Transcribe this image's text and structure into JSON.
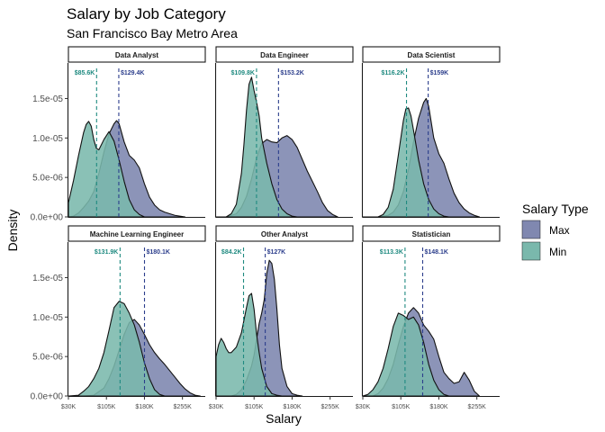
{
  "title": "Salary by Job Category",
  "subtitle": "San Francisco Bay Metro Area",
  "colors": {
    "max": "#8088b0",
    "min": "#7ab8ac",
    "max_line": "#2c3e8c",
    "min_line": "#1f8a80"
  },
  "chart_data": {
    "type": "area",
    "xlabel": "Salary",
    "ylabel": "Density",
    "xlim": [
      30000,
      300000
    ],
    "ylim": [
      0,
      1.95e-05
    ],
    "x_ticks": [
      30000,
      105000,
      180000,
      255000
    ],
    "x_tick_labels": [
      "$30K",
      "$105K",
      "$180K",
      "$255K"
    ],
    "y_ticks": [
      0,
      5e-06,
      1e-05,
      1.5e-05
    ],
    "y_tick_labels": [
      "0.0e+00",
      "5.0e-06",
      "1.0e-05",
      "1.5e-05"
    ],
    "legend": {
      "title": "Salary Type",
      "position": "right",
      "entries": [
        "Max",
        "Min"
      ]
    },
    "facets": [
      {
        "label": "Data Analyst",
        "min_mean": 85600,
        "min_label": "$85.6K",
        "max_mean": 129400,
        "max_label": "$129.4K",
        "series": [
          {
            "name": "Max",
            "x": [
              30000,
              40000,
              50000,
              60000,
              70000,
              80000,
              90000,
              100000,
              110000,
              120000,
              125000,
              130000,
              140000,
              150000,
              160000,
              170000,
              180000,
              190000,
              200000,
              210000,
              220000,
              230000,
              240000,
              250000,
              260000
            ],
            "y": [
              0,
              1e-07,
              5e-07,
              1.2e-06,
              2e-06,
              3.2e-06,
              5.5e-06,
              8.2e-06,
              1.05e-05,
              1.18e-05,
              1.22e-05,
              1.18e-05,
              9.5e-06,
              7.8e-06,
              7.2e-06,
              6.2e-06,
              4.2e-06,
              2.5e-06,
              1.5e-06,
              9e-07,
              6e-07,
              4e-07,
              2e-07,
              1e-07,
              0
            ]
          },
          {
            "name": "Min",
            "x": [
              30000,
              40000,
              50000,
              60000,
              65000,
              70000,
              75000,
              80000,
              85000,
              90000,
              100000,
              110000,
              120000,
              130000,
              140000,
              150000,
              160000,
              170000,
              180000
            ],
            "y": [
              1.8e-06,
              4.6e-06,
              7.8e-06,
              1.07e-05,
              1.17e-05,
              1.21e-05,
              1.15e-05,
              9.8e-06,
              8.7e-06,
              8.5e-06,
              9.8e-06,
              1.08e-05,
              9.6e-06,
              7.2e-06,
              4.5e-06,
              2.2e-06,
              9e-07,
              3e-07,
              0
            ]
          }
        ]
      },
      {
        "label": "Data Engineer",
        "min_mean": 109800,
        "min_label": "$109.8K",
        "max_mean": 153200,
        "max_label": "$153.2K",
        "series": [
          {
            "name": "Max",
            "x": [
              30000,
              50000,
              70000,
              80000,
              90000,
              100000,
              110000,
              120000,
              130000,
              140000,
              150000,
              160000,
              170000,
              180000,
              190000,
              200000,
              210000,
              220000,
              230000,
              240000,
              250000,
              260000,
              270000
            ],
            "y": [
              0,
              0,
              4e-07,
              1.2e-06,
              2.6e-06,
              4.8e-06,
              7.5e-06,
              9.3e-06,
              9.8e-06,
              9.5e-06,
              9.4e-06,
              1e-05,
              1.03e-05,
              9.8e-06,
              8.8e-06,
              7.3e-06,
              5.8e-06,
              4.5e-06,
              3.2e-06,
              1.8e-06,
              8e-07,
              3e-07,
              0
            ]
          },
          {
            "name": "Min",
            "x": [
              30000,
              50000,
              60000,
              70000,
              80000,
              85000,
              90000,
              95000,
              100000,
              105000,
              110000,
              115000,
              120000,
              130000,
              140000,
              150000,
              160000,
              170000,
              180000,
              190000
            ],
            "y": [
              0,
              0,
              4e-07,
              1.6e-06,
              5.5e-06,
              9.2e-06,
              1.35e-05,
              1.68e-05,
              1.77e-05,
              1.6e-05,
              1.45e-05,
              1.28e-05,
              1e-05,
              6.8e-06,
              4.2e-06,
              2.2e-06,
              1e-06,
              4e-07,
              1e-07,
              0
            ]
          }
        ]
      },
      {
        "label": "Data Scientist",
        "min_mean": 116200,
        "min_label": "$116.2K",
        "max_mean": 159000,
        "max_label": "$159K",
        "series": [
          {
            "name": "Max",
            "x": [
              30000,
              60000,
              80000,
              90000,
              100000,
              110000,
              120000,
              130000,
              140000,
              150000,
              155000,
              160000,
              170000,
              180000,
              190000,
              200000,
              210000,
              220000,
              230000,
              240000,
              250000,
              260000
            ],
            "y": [
              0,
              0,
              2e-07,
              6e-07,
              1.5e-06,
              3.2e-06,
              6e-06,
              9.5e-06,
              1.25e-05,
              1.45e-05,
              1.5e-05,
              1.4e-05,
              1e-05,
              8e-06,
              6.8e-06,
              4.8e-06,
              3e-06,
              1.8e-06,
              1e-06,
              5e-07,
              2e-07,
              0
            ]
          },
          {
            "name": "Min",
            "x": [
              30000,
              60000,
              70000,
              80000,
              90000,
              100000,
              110000,
              115000,
              120000,
              125000,
              130000,
              140000,
              150000,
              160000,
              170000,
              180000,
              190000,
              200000
            ],
            "y": [
              0,
              0,
              3e-07,
              1.2e-06,
              3.5e-06,
              7.8e-06,
              1.22e-05,
              1.37e-05,
              1.38e-05,
              1.28e-05,
              1.1e-05,
              7.2e-06,
              4.2e-06,
              2.2e-06,
              1e-06,
              4e-07,
              1e-07,
              0
            ]
          }
        ]
      },
      {
        "label": "Machine Learning Engineer",
        "min_mean": 131900,
        "min_label": "$131.9K",
        "max_mean": 180100,
        "max_label": "$180.1K",
        "series": [
          {
            "name": "Max",
            "x": [
              30000,
              60000,
              80000,
              100000,
              110000,
              120000,
              130000,
              140000,
              150000,
              160000,
              170000,
              180000,
              190000,
              200000,
              210000,
              220000,
              230000,
              240000,
              250000,
              260000,
              270000,
              280000,
              290000
            ],
            "y": [
              0,
              0,
              1e-07,
              1e-06,
              2.2e-06,
              3.8e-06,
              5.8e-06,
              7.8e-06,
              9.3e-06,
              9.7e-06,
              9e-06,
              7.8e-06,
              6.5e-06,
              5.5e-06,
              4.7e-06,
              4e-06,
              3.2e-06,
              2.4e-06,
              1.6e-06,
              9e-07,
              4e-07,
              1e-07,
              0
            ]
          },
          {
            "name": "Min",
            "x": [
              30000,
              50000,
              60000,
              70000,
              80000,
              90000,
              100000,
              110000,
              120000,
              130000,
              140000,
              150000,
              160000,
              170000,
              180000,
              190000,
              200000,
              210000,
              220000
            ],
            "y": [
              0,
              1e-07,
              6e-07,
              1.2e-06,
              2.2e-06,
              3.5e-06,
              5.5e-06,
              8.3e-06,
              1.12e-05,
              1.2e-05,
              1.17e-05,
              1.05e-05,
              9e-06,
              6.8e-06,
              4.2e-06,
              2.2e-06,
              8e-07,
              2e-07,
              0
            ]
          }
        ]
      },
      {
        "label": "Other Analyst",
        "min_mean": 84200,
        "min_label": "$84.2K",
        "max_mean": 127000,
        "max_label": "$127K",
        "series": [
          {
            "name": "Max",
            "x": [
              30000,
              60000,
              70000,
              80000,
              90000,
              100000,
              105000,
              110000,
              115000,
              120000,
              125000,
              130000,
              135000,
              140000,
              145000,
              150000,
              155000,
              160000,
              170000,
              180000,
              190000,
              200000
            ],
            "y": [
              0,
              0,
              2e-07,
              8e-07,
              2e-06,
              3.8e-06,
              5.2e-06,
              7.2e-06,
              9.2e-06,
              1.05e-05,
              1.22e-05,
              1.55e-05,
              1.72e-05,
              1.68e-05,
              1.48e-05,
              1.1e-05,
              6.5e-06,
              3.5e-06,
              1.2e-06,
              3e-07,
              1e-07,
              0
            ]
          },
          {
            "name": "Min",
            "x": [
              30000,
              35000,
              40000,
              45000,
              50000,
              55000,
              60000,
              70000,
              80000,
              90000,
              95000,
              100000,
              105000,
              110000,
              115000,
              120000,
              130000,
              140000,
              150000,
              160000
            ],
            "y": [
              5e-06,
              6.5e-06,
              7.3e-06,
              6.8e-06,
              6e-06,
              5.5e-06,
              5.5e-06,
              6.2e-06,
              8e-06,
              1.12e-05,
              1.27e-05,
              1.3e-05,
              1.1e-05,
              7.8e-06,
              5.5e-06,
              3.5e-06,
              1.2e-06,
              3e-07,
              1e-07,
              0
            ]
          }
        ]
      },
      {
        "label": "Statistician",
        "min_mean": 113300,
        "min_label": "$113.3K",
        "max_mean": 148100,
        "max_label": "$148.1K",
        "series": [
          {
            "name": "Max",
            "x": [
              30000,
              50000,
              60000,
              70000,
              80000,
              90000,
              100000,
              110000,
              120000,
              130000,
              140000,
              150000,
              160000,
              170000,
              180000,
              190000,
              200000,
              210000,
              220000,
              230000,
              240000,
              250000,
              260000
            ],
            "y": [
              0,
              0,
              3e-07,
              1e-06,
              2.2e-06,
              4e-06,
              6.5e-06,
              8.8e-06,
              1.05e-05,
              1.12e-05,
              1.05e-05,
              9e-06,
              8.2e-06,
              7.2e-06,
              5e-06,
              3e-06,
              2.2e-06,
              1.6e-06,
              1.8e-06,
              3e-06,
              2e-06,
              6e-07,
              0
            ]
          },
          {
            "name": "Min",
            "x": [
              30000,
              40000,
              50000,
              60000,
              70000,
              80000,
              90000,
              100000,
              110000,
              120000,
              130000,
              140000,
              150000,
              160000,
              170000,
              180000,
              190000,
              200000
            ],
            "y": [
              0,
              2e-07,
              8e-07,
              1.8e-06,
              3.5e-06,
              6e-06,
              8.8e-06,
              1.05e-05,
              1.02e-05,
              9.7e-06,
              1e-05,
              9e-06,
              6.8e-06,
              4e-06,
              2e-06,
              8e-07,
              2e-07,
              0
            ]
          }
        ]
      }
    ]
  }
}
